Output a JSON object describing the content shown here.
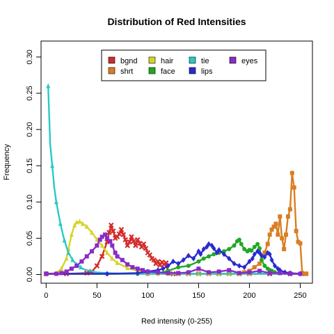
{
  "chart_data": {
    "type": "line",
    "title": "Distribution of Red Intensities",
    "xlabel": "Red  intensity (0-255)",
    "ylabel": "Frequency",
    "xlim": [
      -5,
      262
    ],
    "ylim": [
      -0.012,
      0.322
    ],
    "x_ticks": [
      0,
      50,
      100,
      150,
      200,
      250
    ],
    "y_ticks": [
      0.0,
      0.05,
      0.1,
      0.15,
      0.2,
      0.25,
      0.3
    ],
    "y_tick_labels": [
      "0.00",
      "0.05",
      "0.10",
      "0.15",
      "0.20",
      "0.25",
      "0.30"
    ],
    "grid": false,
    "legend_position": "top-center",
    "legend_columns": 4,
    "series": [
      {
        "name": "bgnd",
        "color": "#d42a2a",
        "marker": "cross",
        "x": [
          0,
          20,
          40,
          45,
          50,
          55,
          60,
          62,
          64,
          66,
          68,
          70,
          72,
          74,
          76,
          78,
          80,
          82,
          84,
          86,
          88,
          90,
          92,
          94,
          96,
          98,
          100,
          102,
          104,
          106,
          108,
          110,
          112,
          114,
          116,
          118,
          120,
          125,
          130,
          140,
          150,
          160,
          170,
          180,
          190,
          200,
          220,
          240,
          255
        ],
        "y": [
          0.001,
          0.001,
          0.002,
          0.004,
          0.012,
          0.025,
          0.045,
          0.058,
          0.068,
          0.06,
          0.05,
          0.052,
          0.056,
          0.062,
          0.055,
          0.048,
          0.04,
          0.045,
          0.052,
          0.046,
          0.04,
          0.048,
          0.043,
          0.038,
          0.042,
          0.036,
          0.03,
          0.027,
          0.022,
          0.02,
          0.015,
          0.018,
          0.013,
          0.017,
          0.014,
          0.016,
          0.002,
          0.001,
          0.001,
          0.001,
          0.001,
          0.001,
          0.001,
          0.001,
          0.001,
          0.001,
          0.001,
          0.001,
          0.001
        ]
      },
      {
        "name": "shrt",
        "color": "#d97e22",
        "marker": "square",
        "x": [
          0,
          100,
          150,
          180,
          190,
          195,
          200,
          205,
          210,
          215,
          218,
          220,
          222,
          224,
          226,
          228,
          230,
          232,
          234,
          236,
          238,
          240,
          242,
          244,
          246,
          248,
          250,
          252,
          254,
          256
        ],
        "y": [
          0.001,
          0.001,
          0.001,
          0.001,
          0.002,
          0.003,
          0.005,
          0.01,
          0.015,
          0.03,
          0.042,
          0.055,
          0.062,
          0.066,
          0.07,
          0.055,
          0.08,
          0.05,
          0.035,
          0.055,
          0.08,
          0.09,
          0.14,
          0.12,
          0.06,
          0.045,
          0.043,
          0.002,
          0.001,
          0.001
        ]
      },
      {
        "name": "hair",
        "color": "#d4d42a",
        "marker": "triangle",
        "x": [
          0,
          10,
          15,
          20,
          22,
          25,
          28,
          30,
          33,
          36,
          40,
          45,
          50,
          55,
          60,
          65,
          70,
          80,
          90,
          100,
          110,
          120,
          130,
          140,
          150,
          160,
          170,
          180,
          190,
          200
        ],
        "y": [
          0.001,
          0.002,
          0.008,
          0.022,
          0.035,
          0.055,
          0.068,
          0.072,
          0.073,
          0.07,
          0.066,
          0.058,
          0.048,
          0.04,
          0.03,
          0.022,
          0.016,
          0.009,
          0.005,
          0.002,
          0.001,
          0.001,
          0.001,
          0.001,
          0.001,
          0.001,
          0.001,
          0.001,
          0.001,
          0.001
        ]
      },
      {
        "name": "face",
        "color": "#22a822",
        "marker": "circle",
        "x": [
          0,
          60,
          90,
          110,
          120,
          130,
          140,
          150,
          155,
          160,
          165,
          170,
          175,
          180,
          185,
          188,
          190,
          192,
          195,
          198,
          200,
          202,
          205,
          208,
          210,
          212,
          215,
          218,
          220,
          222,
          225,
          230,
          240,
          250
        ],
        "y": [
          0.001,
          0.001,
          0.001,
          0.002,
          0.005,
          0.01,
          0.012,
          0.018,
          0.022,
          0.025,
          0.028,
          0.03,
          0.032,
          0.035,
          0.04,
          0.046,
          0.048,
          0.042,
          0.035,
          0.032,
          0.034,
          0.033,
          0.038,
          0.042,
          0.036,
          0.02,
          0.012,
          0.008,
          0.006,
          0.005,
          0.003,
          0.002,
          0.001,
          0.001
        ]
      },
      {
        "name": "tie",
        "color": "#2ac8c8",
        "marker": "triangle",
        "x": [
          2,
          4,
          6,
          8,
          10,
          12,
          14,
          16,
          18,
          20,
          22,
          24,
          26,
          28,
          30,
          32,
          34,
          36,
          40,
          50,
          60,
          80,
          100,
          150,
          200,
          250
        ],
        "y": [
          0.26,
          0.18,
          0.15,
          0.12,
          0.1,
          0.085,
          0.07,
          0.058,
          0.047,
          0.038,
          0.03,
          0.025,
          0.02,
          0.017,
          0.014,
          0.012,
          0.01,
          0.008,
          0.006,
          0.003,
          0.002,
          0.001,
          0.001,
          0.001,
          0.001,
          0.001
        ],
        "marker_x": [
          2,
          6,
          10,
          14,
          18,
          22,
          26,
          30,
          34
        ],
        "marker_y": [
          0.26,
          0.15,
          0.1,
          0.07,
          0.047,
          0.03,
          0.02,
          0.014,
          0.01
        ]
      },
      {
        "name": "lips",
        "color": "#2a2acf",
        "marker": "diamond",
        "x": [
          0,
          60,
          90,
          100,
          110,
          115,
          120,
          125,
          130,
          135,
          140,
          145,
          150,
          152,
          155,
          158,
          160,
          163,
          165,
          168,
          170,
          175,
          180,
          185,
          190,
          195,
          200,
          203,
          205,
          208,
          210,
          212,
          215,
          218,
          220,
          222,
          225,
          228,
          230,
          235,
          240,
          250
        ],
        "y": [
          0.001,
          0.001,
          0.002,
          0.004,
          0.006,
          0.008,
          0.012,
          0.018,
          0.015,
          0.02,
          0.026,
          0.022,
          0.032,
          0.028,
          0.035,
          0.038,
          0.042,
          0.04,
          0.036,
          0.03,
          0.034,
          0.028,
          0.022,
          0.015,
          0.012,
          0.01,
          0.018,
          0.022,
          0.028,
          0.032,
          0.03,
          0.026,
          0.024,
          0.03,
          0.028,
          0.02,
          0.012,
          0.008,
          0.006,
          0.003,
          0.002,
          0.001
        ]
      },
      {
        "name": "eyes",
        "color": "#8a2ac8",
        "marker": "square",
        "x": [
          0,
          10,
          15,
          20,
          25,
          30,
          35,
          40,
          45,
          50,
          53,
          55,
          58,
          60,
          63,
          65,
          68,
          70,
          75,
          80,
          85,
          90,
          95,
          100,
          110,
          120,
          130,
          140,
          150,
          160,
          170,
          180,
          190,
          200,
          210,
          220,
          230,
          240,
          250
        ],
        "y": [
          0.001,
          0.001,
          0.002,
          0.004,
          0.008,
          0.012,
          0.018,
          0.025,
          0.032,
          0.04,
          0.048,
          0.052,
          0.055,
          0.05,
          0.046,
          0.04,
          0.03,
          0.025,
          0.02,
          0.014,
          0.01,
          0.008,
          0.006,
          0.004,
          0.003,
          0.002,
          0.002,
          0.003,
          0.008,
          0.003,
          0.004,
          0.006,
          0.002,
          0.003,
          0.005,
          0.002,
          0.002,
          0.001,
          0.001
        ]
      }
    ]
  }
}
